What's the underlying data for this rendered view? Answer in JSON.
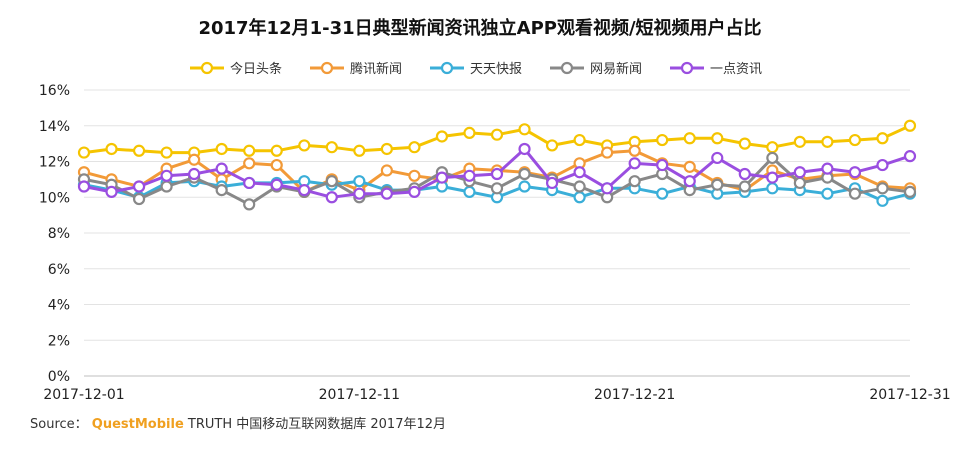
{
  "chart_data": {
    "type": "line",
    "title": "2017年12月1-31日典型新闻资讯独立APP观看视频/短视频用户占比",
    "x": [
      "2017-12-01",
      "2017-12-02",
      "2017-12-03",
      "2017-12-04",
      "2017-12-05",
      "2017-12-06",
      "2017-12-07",
      "2017-12-08",
      "2017-12-09",
      "2017-12-10",
      "2017-12-11",
      "2017-12-12",
      "2017-12-13",
      "2017-12-14",
      "2017-12-15",
      "2017-12-16",
      "2017-12-17",
      "2017-12-18",
      "2017-12-19",
      "2017-12-20",
      "2017-12-21",
      "2017-12-22",
      "2017-12-23",
      "2017-12-24",
      "2017-12-25",
      "2017-12-26",
      "2017-12-27",
      "2017-12-28",
      "2017-12-29",
      "2017-12-30",
      "2017-12-31"
    ],
    "x_tick_labels": [
      "2017-12-01",
      "2017-12-11",
      "2017-12-21",
      "2017-12-31"
    ],
    "y_tick_labels": [
      "0%",
      "2%",
      "4%",
      "6%",
      "8%",
      "10%",
      "12%",
      "14%",
      "16%"
    ],
    "ylim": [
      0,
      16
    ],
    "y_unit": "%",
    "grid": true,
    "legend_position": "top-center",
    "series": [
      {
        "name": "今日头条",
        "color": "#f5c400",
        "values": [
          12.5,
          12.7,
          12.6,
          12.5,
          12.5,
          12.7,
          12.6,
          12.6,
          12.9,
          12.8,
          12.6,
          12.7,
          12.8,
          13.4,
          13.6,
          13.5,
          13.8,
          12.9,
          13.2,
          12.9,
          13.1,
          13.2,
          13.3,
          13.3,
          13.0,
          12.8,
          13.1,
          13.1,
          13.2,
          13.3,
          14.0
        ]
      },
      {
        "name": "腾讯新闻",
        "color": "#f29a38",
        "values": [
          11.4,
          11.0,
          10.6,
          11.6,
          12.1,
          11.0,
          11.9,
          11.8,
          10.3,
          11.0,
          10.4,
          11.5,
          11.2,
          11.0,
          11.6,
          11.5,
          11.4,
          11.1,
          11.9,
          12.5,
          12.6,
          11.9,
          11.7,
          10.8,
          10.4,
          11.5,
          11.0,
          11.2,
          11.3,
          10.6,
          10.5
        ]
      },
      {
        "name": "天天快报",
        "color": "#3aaed8",
        "values": [
          10.7,
          10.4,
          10.0,
          10.8,
          10.9,
          10.6,
          10.8,
          10.8,
          10.9,
          10.7,
          10.9,
          10.4,
          10.4,
          10.6,
          10.3,
          10.0,
          10.6,
          10.4,
          10.0,
          10.5,
          10.5,
          10.2,
          10.6,
          10.2,
          10.3,
          10.5,
          10.4,
          10.2,
          10.5,
          9.8,
          10.2
        ]
      },
      {
        "name": "网易新闻",
        "color": "#888888",
        "values": [
          11.0,
          10.7,
          9.9,
          10.6,
          11.1,
          10.4,
          9.6,
          10.6,
          10.3,
          10.9,
          10.0,
          10.3,
          10.5,
          11.4,
          10.9,
          10.5,
          11.3,
          11.0,
          10.6,
          10.0,
          10.9,
          11.3,
          10.4,
          10.7,
          10.6,
          12.2,
          10.8,
          11.1,
          10.2,
          10.5,
          10.3
        ]
      },
      {
        "name": "一点资讯",
        "color": "#9a4ee0",
        "values": [
          10.6,
          10.3,
          10.6,
          11.2,
          11.3,
          11.6,
          10.8,
          10.7,
          10.4,
          10.0,
          10.2,
          10.2,
          10.3,
          11.1,
          11.2,
          11.3,
          12.7,
          10.8,
          11.4,
          10.5,
          11.9,
          11.8,
          10.9,
          12.2,
          11.3,
          11.1,
          11.4,
          11.6,
          11.4,
          11.8,
          12.3
        ]
      }
    ]
  },
  "source": {
    "label": "Source：",
    "brand": "QuestMobile",
    "text": "TRUTH 中国移动互联网数据库 2017年12月"
  }
}
